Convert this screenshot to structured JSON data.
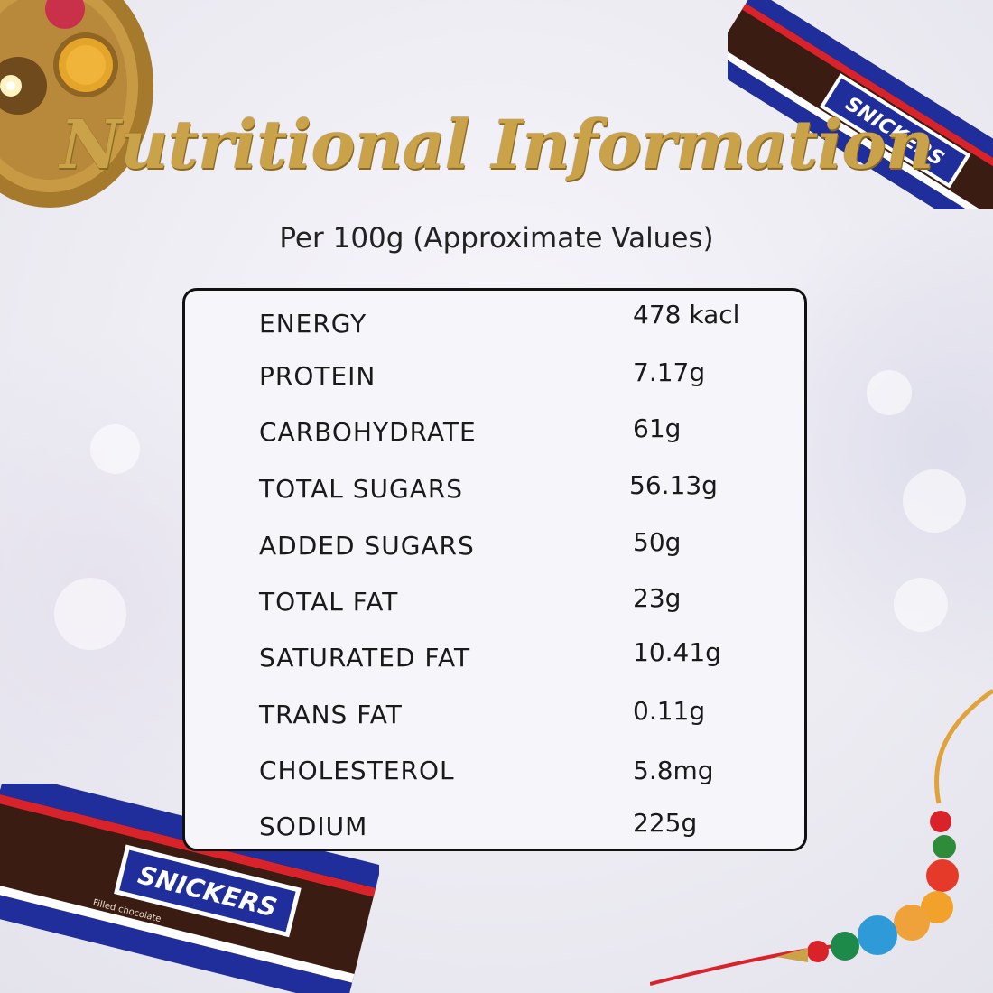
{
  "title": "Nutritional Information",
  "subtitle": "Per 100g (Approximate Values)",
  "nutrients": [
    {
      "label": "ENERGY",
      "value": "478 kacl"
    },
    {
      "label": "PROTEIN",
      "value": "7.17g"
    },
    {
      "label": "CARBOHYDRATE",
      "value": "61g"
    },
    {
      "label": "TOTAL SUGARS",
      "value": "56.13g"
    },
    {
      "label": "ADDED SUGARS",
      "value": "50g"
    },
    {
      "label": "TOTAL FAT",
      "value": "23g"
    },
    {
      "label": "SATURATED FAT",
      "value": "10.41g"
    },
    {
      "label": "TRANS FAT",
      "value": "0.11g"
    },
    {
      "label": "CHOLESTEROL",
      "value": "5.8mg"
    },
    {
      "label": "SODIUM",
      "value": "225g"
    }
  ],
  "brand": {
    "name": "SNICKERS",
    "wrapper_text": "Filled chocolate"
  },
  "colors": {
    "title_gold": "#c9a24a",
    "text": "#1a1a1a",
    "snickers_blue": "#1f2e9b",
    "snickers_brown": "#3a1c12"
  }
}
